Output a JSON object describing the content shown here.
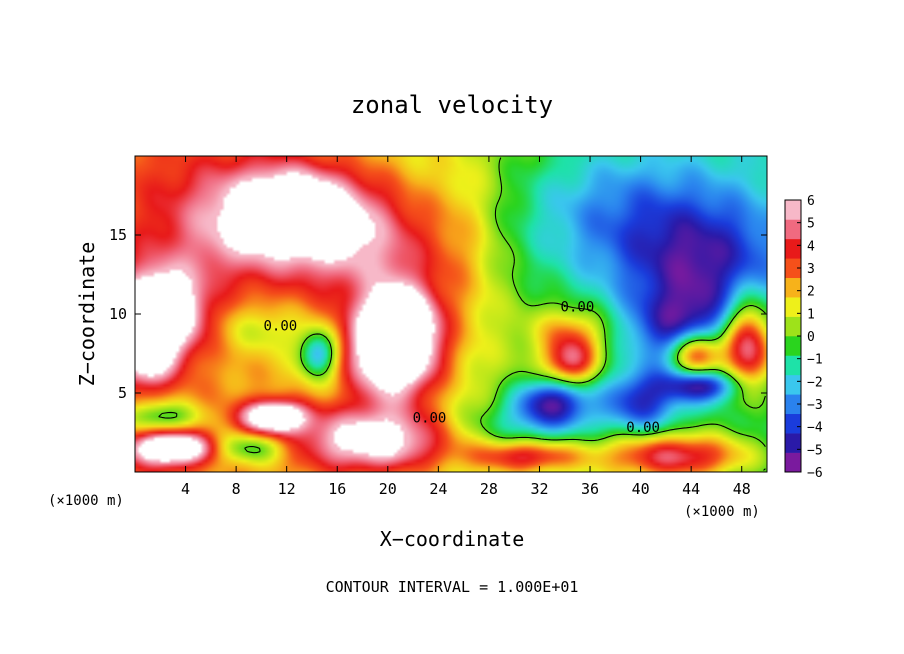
{
  "chart_data": {
    "type": "heatmap",
    "title": "zonal velocity",
    "xlabel": "X−coordinate",
    "ylabel": "Z−coordinate",
    "x_unit_left": "(×1000 m)",
    "x_unit_right": "(×1000 m)",
    "footer": "CONTOUR INTERVAL = 1.000E+01",
    "xlim": [
      0,
      50
    ],
    "ylim": [
      0,
      20
    ],
    "x_ticks": [
      4,
      8,
      12,
      16,
      20,
      24,
      28,
      32,
      36,
      40,
      44,
      48
    ],
    "x_tick_labels": [
      "4",
      "8",
      "12",
      "16",
      "20",
      "24",
      "28",
      "32",
      "36",
      "40",
      "44",
      "48"
    ],
    "y_ticks": [
      5,
      10,
      15
    ],
    "y_tick_labels": [
      "5",
      "10",
      "15"
    ],
    "colorbar": {
      "range": [
        -6,
        6
      ],
      "tick_values": [
        6,
        5,
        4,
        3,
        2,
        1,
        0,
        -1,
        -2,
        -3,
        -4,
        -5,
        -6
      ],
      "tick_labels": [
        "6",
        "5",
        "4",
        "3",
        "2",
        "1",
        "0",
        "−1",
        "−2",
        "−3",
        "−4",
        "−5",
        "−6"
      ],
      "colors": [
        "#7a1a9e",
        "#2a1aa8",
        "#1a3cdc",
        "#2a82ee",
        "#3ac7ee",
        "#1ee2a8",
        "#2ad41e",
        "#9ee21a",
        "#eef01a",
        "#f7b21a",
        "#f5501a",
        "#e81a1a",
        "#f06a80",
        "#f7b8c8"
      ]
    },
    "contour_labels": [
      {
        "text": "0.00",
        "x": 35.0,
        "z": 10.4
      },
      {
        "text": "0.00",
        "x": 11.5,
        "z": 9.2
      },
      {
        "text": "0.00",
        "x": 23.3,
        "z": 3.4
      },
      {
        "text": "0.00",
        "x": 40.2,
        "z": 2.8
      }
    ],
    "blobs": [
      {
        "x": 12.5,
        "z": 16.5,
        "rx": 4.5,
        "rz": 2.5,
        "v": 5.5
      },
      {
        "x": 8,
        "z": 16,
        "rx": 6,
        "rz": 4,
        "v": 3
      },
      {
        "x": 16,
        "z": 15,
        "rx": 5,
        "rz": 4,
        "v": 3.5
      },
      {
        "x": 21,
        "z": 13,
        "rx": 4,
        "rz": 5,
        "v": 2.5
      },
      {
        "x": 20.5,
        "z": 7.5,
        "rx": 3.5,
        "rz": 3,
        "v": 8
      },
      {
        "x": 21,
        "z": 9.5,
        "rx": 2.5,
        "rz": 2,
        "v": 4.5
      },
      {
        "x": 2,
        "z": 10,
        "rx": 3,
        "rz": 2.5,
        "v": 8
      },
      {
        "x": 1,
        "z": 7,
        "rx": 2,
        "rz": 1.5,
        "v": 4
      },
      {
        "x": 11,
        "z": 3.5,
        "rx": 2.5,
        "rz": 1,
        "v": 7
      },
      {
        "x": 19,
        "z": 2,
        "rx": 6,
        "rz": 2,
        "v": 6
      },
      {
        "x": 3,
        "z": 1.5,
        "rx": 3,
        "rz": 1,
        "v": 7
      },
      {
        "x": 34.5,
        "z": 7,
        "rx": 2,
        "rz": 1.5,
        "v": 5
      },
      {
        "x": 34.5,
        "z": 9,
        "rx": 3,
        "rz": 1.5,
        "v": 2.5
      },
      {
        "x": 31,
        "z": 1,
        "rx": 4,
        "rz": 1,
        "v": 4
      },
      {
        "x": 43,
        "z": 1,
        "rx": 6,
        "rz": 1.5,
        "v": 5.5
      },
      {
        "x": 48.5,
        "z": 8,
        "rx": 2,
        "rz": 3,
        "v": 7
      },
      {
        "x": 44.5,
        "z": 7.5,
        "rx": 2,
        "rz": 1.5,
        "v": 6.5
      },
      {
        "x": 26,
        "z": 14,
        "rx": 3,
        "rz": 6,
        "v": 1.5
      },
      {
        "x": 38,
        "z": 16,
        "rx": 9,
        "rz": 5,
        "v": -3
      },
      {
        "x": 45,
        "z": 13,
        "rx": 6,
        "rz": 4,
        "v": -3.5
      },
      {
        "x": 43,
        "z": 9,
        "rx": 4,
        "rz": 2.5,
        "v": -3.5
      },
      {
        "x": 33,
        "z": 4.5,
        "rx": 3,
        "rz": 1.5,
        "v": -5
      },
      {
        "x": 40,
        "z": 4.5,
        "rx": 3,
        "rz": 2,
        "v": -4
      },
      {
        "x": 14.5,
        "z": 7.5,
        "rx": 1.5,
        "rz": 1.5,
        "v": -5
      },
      {
        "x": 10,
        "z": 9,
        "rx": 3,
        "rz": 1.5,
        "v": -1.5
      },
      {
        "x": 2,
        "z": 3.5,
        "rx": 3,
        "rz": 1,
        "v": -3.5
      },
      {
        "x": 9,
        "z": 1.5,
        "rx": 3,
        "rz": 1,
        "v": -3
      },
      {
        "x": 31,
        "z": 3,
        "rx": 6,
        "rz": 1.5,
        "v": -2
      },
      {
        "x": 5,
        "z": 13,
        "rx": 4,
        "rz": 2,
        "v": 0.5
      },
      {
        "x": 45,
        "z": 5.5,
        "rx": 3,
        "rz": 1,
        "v": -4.5
      }
    ]
  }
}
